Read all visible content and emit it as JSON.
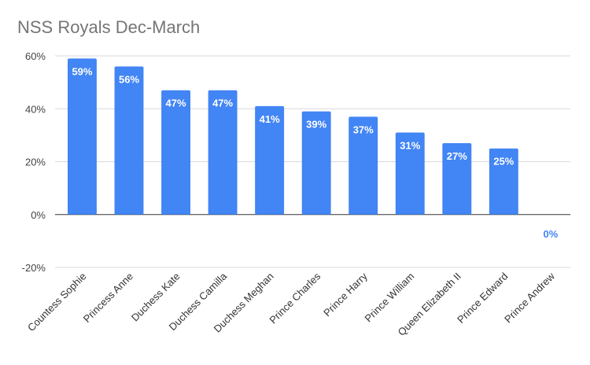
{
  "chart_data": {
    "type": "bar",
    "title": "NSS Royals Dec-March",
    "xlabel": "",
    "ylabel": "",
    "categories": [
      "Countess Sophie",
      "Princess Anne",
      "Duchess Kate",
      "Duchess Camilla",
      "Duchess Meghan",
      "Prince Charles",
      "Prince Harry",
      "Prince William",
      "Queen Elizabeth II",
      "Prince Edward",
      "Prince Andrew"
    ],
    "values": [
      59,
      56,
      47,
      47,
      41,
      39,
      37,
      31,
      27,
      25,
      0
    ],
    "data_labels": [
      "59%",
      "56%",
      "47%",
      "47%",
      "41%",
      "39%",
      "37%",
      "31%",
      "27%",
      "25%",
      "0%"
    ],
    "ylim": [
      -20,
      60
    ],
    "yticks": [
      60,
      40,
      20,
      0,
      -20
    ],
    "ytick_labels": [
      "60%",
      "40%",
      "20%",
      "0%",
      "-20%"
    ],
    "grid": true,
    "legend": "none",
    "colors": {
      "bar": "#4285f4",
      "label_inside": "#ffffff",
      "label_outside": "#4285f4"
    }
  }
}
